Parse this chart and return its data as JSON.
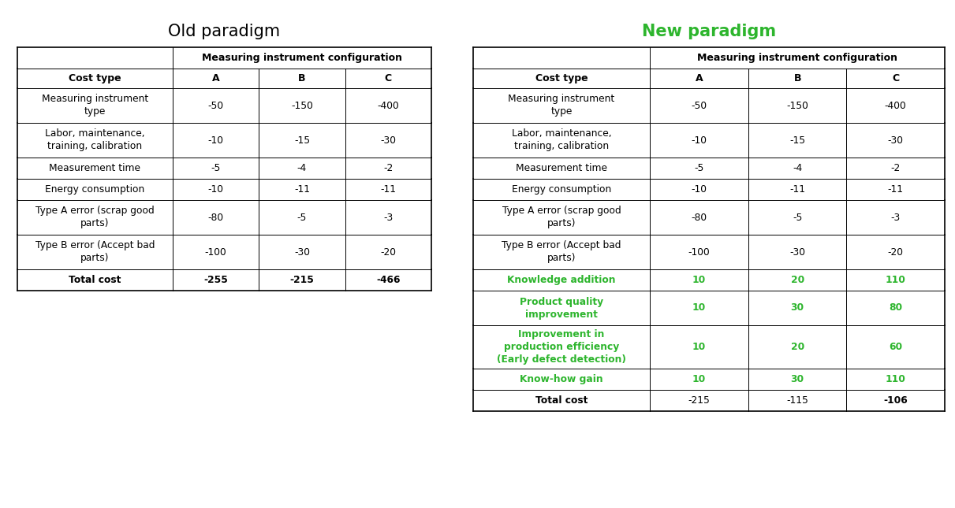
{
  "title_old": "Old paradigm",
  "title_new": "New paradigm",
  "title_old_color": "#000000",
  "title_new_color": "#2db52d",
  "green_color": "#2db52d",
  "black_color": "#000000",
  "header_row1": "Measuring instrument configuration",
  "header_row2_cols": [
    "Cost type",
    "A",
    "B",
    "C"
  ],
  "old_rows": [
    {
      "label": "Measuring instrument\ntype",
      "A": "-50",
      "B": "-150",
      "C": "-400",
      "bold": false,
      "green": false,
      "lines": 2
    },
    {
      "label": "Labor, maintenance,\ntraining, calibration",
      "A": "-10",
      "B": "-15",
      "C": "-30",
      "bold": false,
      "green": false,
      "lines": 2
    },
    {
      "label": "Measurement time",
      "A": "-5",
      "B": "-4",
      "C": "-2",
      "bold": false,
      "green": false,
      "lines": 1
    },
    {
      "label": "Energy consumption",
      "A": "-10",
      "B": "-11",
      "C": "-11",
      "bold": false,
      "green": false,
      "lines": 1
    },
    {
      "label": "Type A error (scrap good\nparts)",
      "A": "-80",
      "B": "-5",
      "C": "-3",
      "bold": false,
      "green": false,
      "lines": 2
    },
    {
      "label": "Type B error (Accept bad\nparts)",
      "A": "-100",
      "B": "-30",
      "C": "-20",
      "bold": false,
      "green": false,
      "lines": 2
    },
    {
      "label": "Total cost",
      "A": "-255",
      "B": "-215",
      "C": "-466",
      "bold": true,
      "green": false,
      "lines": 1,
      "bold_cols": [
        "A",
        "B",
        "C"
      ]
    }
  ],
  "new_rows": [
    {
      "label": "Measuring instrument\ntype",
      "A": "-50",
      "B": "-150",
      "C": "-400",
      "bold": false,
      "green": false,
      "lines": 2
    },
    {
      "label": "Labor, maintenance,\ntraining, calibration",
      "A": "-10",
      "B": "-15",
      "C": "-30",
      "bold": false,
      "green": false,
      "lines": 2
    },
    {
      "label": "Measurement time",
      "A": "-5",
      "B": "-4",
      "C": "-2",
      "bold": false,
      "green": false,
      "lines": 1
    },
    {
      "label": "Energy consumption",
      "A": "-10",
      "B": "-11",
      "C": "-11",
      "bold": false,
      "green": false,
      "lines": 1
    },
    {
      "label": "Type A error (scrap good\nparts)",
      "A": "-80",
      "B": "-5",
      "C": "-3",
      "bold": false,
      "green": false,
      "lines": 2
    },
    {
      "label": "Type B error (Accept bad\nparts)",
      "A": "-100",
      "B": "-30",
      "C": "-20",
      "bold": false,
      "green": false,
      "lines": 2
    },
    {
      "label": "Knowledge addition",
      "A": "10",
      "B": "20",
      "C": "110",
      "bold": true,
      "green": true,
      "lines": 1,
      "bold_cols": [
        "A",
        "B",
        "C"
      ]
    },
    {
      "label": "Product quality\nimprovement",
      "A": "10",
      "B": "30",
      "C": "80",
      "bold": true,
      "green": true,
      "lines": 2,
      "bold_cols": [
        "A",
        "B",
        "C"
      ]
    },
    {
      "label": "Improvement in\nproduction efficiency\n(Early defect detection)",
      "A": "10",
      "B": "20",
      "C": "60",
      "bold": true,
      "green": true,
      "lines": 3,
      "bold_cols": [
        "A",
        "B",
        "C"
      ]
    },
    {
      "label": "Know-how gain",
      "A": "10",
      "B": "30",
      "C": "110",
      "bold": true,
      "green": true,
      "lines": 1,
      "bold_cols": [
        "A",
        "B",
        "C"
      ]
    },
    {
      "label": "Total cost",
      "A": "-215",
      "B": "-115",
      "C": "-106",
      "bold": true,
      "green": false,
      "lines": 1,
      "bold_cols": [
        "C"
      ]
    }
  ],
  "bg_color": "#ffffff",
  "line_color": "#555555",
  "outer_line_color": "#000000"
}
